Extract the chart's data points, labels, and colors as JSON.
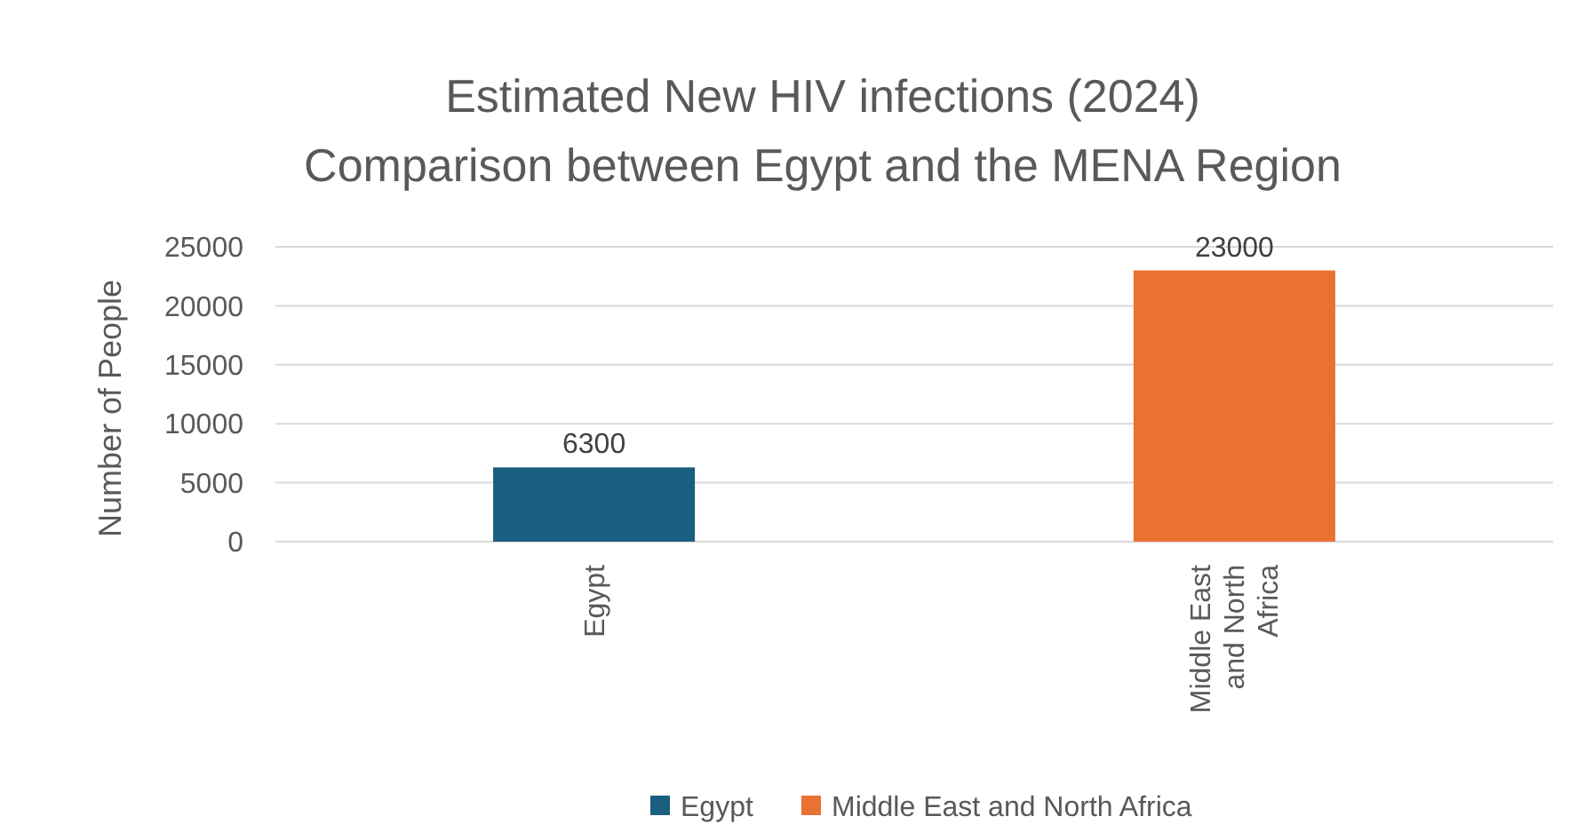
{
  "chart_data": {
    "type": "bar",
    "title": "Estimated New HIV infections (2024)",
    "subtitle": "Comparison between Egypt and the MENA Region",
    "ylabel": "Number of People",
    "categories": [
      "Egypt",
      "Middle East and North Africa"
    ],
    "series": [
      {
        "name": "Egypt",
        "color": "#1a5e80",
        "values": [
          6300,
          null
        ]
      },
      {
        "name": "Middle East and North Africa",
        "color": "#e97132",
        "values": [
          null,
          23000
        ]
      }
    ],
    "ylim": [
      0,
      25000
    ],
    "yticks": [
      0,
      5000,
      10000,
      15000,
      20000,
      25000
    ],
    "grid": "y",
    "data_labels": true,
    "legend": "bottom"
  }
}
